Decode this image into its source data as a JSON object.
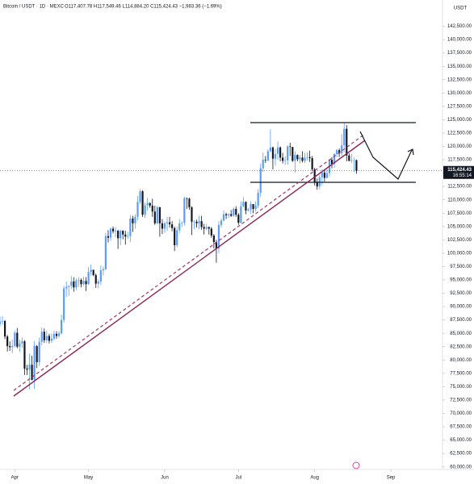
{
  "chart_data": {
    "type": "candlestick",
    "title": "Bitcoin / USDT · 1D · MEXC",
    "subtitle": "O117,407.78 H117,549.46 L114,884.20 C115,424.43 −1,983.36 (−1.69%)",
    "y_axis_label": "USDT",
    "annotations": [
      "115,424.43",
      "16:55:14"
    ],
    "up_color": "#5b9cf6",
    "down_color": "#131722",
    "xlim": [
      0,
      180
    ],
    "xticks": [
      {
        "value": 6,
        "label": "Apr"
      },
      {
        "value": 36,
        "label": "May"
      },
      {
        "value": 67,
        "label": "Jun"
      },
      {
        "value": 97,
        "label": "Jul"
      },
      {
        "value": 128,
        "label": "Aug"
      },
      {
        "value": 159,
        "label": "Sep"
      }
    ],
    "ylim": [
      59500,
      145000
    ],
    "yticks": [
      {
        "value": 60000,
        "label": "60,000.00"
      },
      {
        "value": 62500,
        "label": "62,500.00"
      },
      {
        "value": 65000,
        "label": "65,000.00"
      },
      {
        "value": 67500,
        "label": "67,500.00"
      },
      {
        "value": 70000,
        "label": "70,000.00"
      },
      {
        "value": 72500,
        "label": "72,500.00"
      },
      {
        "value": 75000,
        "label": "75,000.00"
      },
      {
        "value": 77500,
        "label": "77,500.00"
      },
      {
        "value": 80000,
        "label": "80,000.00"
      },
      {
        "value": 82500,
        "label": "82,500.00"
      },
      {
        "value": 85000,
        "label": "85,000.00"
      },
      {
        "value": 87500,
        "label": "87,500.00"
      },
      {
        "value": 90000,
        "label": "90,000.00"
      },
      {
        "value": 92500,
        "label": "92,500.00"
      },
      {
        "value": 95000,
        "label": "95,000.00"
      },
      {
        "value": 97500,
        "label": "97,500.00"
      },
      {
        "value": 100000,
        "label": "100,000.00"
      },
      {
        "value": 102500,
        "label": "102,500.00"
      },
      {
        "value": 105000,
        "label": "105,000.00"
      },
      {
        "value": 107500,
        "label": "107,500.00"
      },
      {
        "value": 110000,
        "label": "110,000.00"
      },
      {
        "value": 112500,
        "label": "112,500.00"
      },
      {
        "value": 115000,
        "label": "115,000.00"
      },
      {
        "value": 117500,
        "label": "117,500.00"
      },
      {
        "value": 120000,
        "label": "120,000.00"
      },
      {
        "value": 122500,
        "label": "122,500.00"
      },
      {
        "value": 125000,
        "label": "125,000.00"
      },
      {
        "value": 127500,
        "label": "127,500.00"
      },
      {
        "value": 130000,
        "label": "130,000.00"
      },
      {
        "value": 132500,
        "label": "132,500.00"
      },
      {
        "value": 135000,
        "label": "135,000.00"
      },
      {
        "value": 137500,
        "label": "137,500.00"
      },
      {
        "value": 140000,
        "label": "140,000.00"
      },
      {
        "value": 142500,
        "label": "142,500.00"
      }
    ],
    "open": [
      86800,
      87200,
      87300,
      84400,
      82600,
      82400,
      82600,
      85100,
      82500,
      83100,
      83500,
      78400,
      78200,
      79100,
      76300,
      82600,
      79600,
      83400,
      85300,
      83700,
      84500,
      83600,
      84000,
      84900,
      84500,
      85000,
      87500,
      93400,
      93700,
      93900,
      94700,
      93600,
      94900,
      95000,
      94200,
      94800,
      94200,
      96500,
      96900,
      95900,
      94300,
      94700,
      96800,
      97000,
      103200,
      102900,
      104600,
      104100,
      104200,
      102800,
      104200,
      103500,
      103100,
      103200,
      106500,
      105600,
      106800,
      109600,
      111600,
      107200,
      109000,
      109400,
      108900,
      107800,
      105600,
      108600,
      105600,
      104600,
      105600,
      105800,
      105400,
      104700,
      101500,
      104300,
      105600,
      105700,
      110300,
      110200,
      108600,
      105900,
      105900,
      105600,
      106000,
      104900,
      104600,
      104900,
      104600,
      103300,
      102100,
      100900,
      105300,
      106100,
      107300,
      107100,
      107300,
      107000,
      108300,
      107200,
      105700,
      108800,
      109600,
      108000,
      108200,
      109200,
      108300,
      108900,
      111300,
      115900,
      117500,
      117400,
      119100,
      119800,
      117700,
      118600,
      119800,
      117900,
      117300,
      117400,
      120000,
      119900,
      117300,
      118400,
      117600,
      117900,
      117300,
      117900,
      118000,
      117800,
      115700,
      113300,
      112500,
      114200,
      115100,
      114100,
      115000,
      117500,
      116700,
      118600,
      119300,
      118700,
      120200,
      123300,
      118300,
      117300,
      117400,
      117407.78
    ],
    "high": [
      88100,
      88200,
      87500,
      84700,
      83500,
      83800,
      85500,
      86000,
      83800,
      84200,
      83700,
      79100,
      81200,
      80800,
      83500,
      82800,
      84200,
      86100,
      85900,
      85500,
      84900,
      85000,
      85500,
      85400,
      85400,
      88500,
      93900,
      94700,
      94000,
      95700,
      95500,
      95300,
      95500,
      95300,
      95600,
      95500,
      97400,
      97900,
      96900,
      96200,
      95100,
      97700,
      97500,
      103800,
      104300,
      104800,
      105000,
      104900,
      104400,
      104400,
      104300,
      104200,
      104000,
      107100,
      107000,
      107300,
      110700,
      112000,
      111800,
      109500,
      110400,
      109500,
      110200,
      108900,
      108900,
      108700,
      106400,
      105900,
      106800,
      106800,
      106000,
      105000,
      105000,
      106400,
      106000,
      110600,
      110400,
      110400,
      108800,
      106200,
      106300,
      107000,
      107000,
      105500,
      105500,
      105000,
      104900,
      103600,
      102500,
      106000,
      106500,
      108000,
      107600,
      107500,
      108100,
      108600,
      108800,
      107500,
      109700,
      110500,
      109700,
      108500,
      109700,
      109200,
      109700,
      112000,
      116800,
      118900,
      118200,
      119500,
      123200,
      120000,
      119500,
      120900,
      120000,
      118800,
      118200,
      120200,
      120700,
      119800,
      119100,
      118500,
      118400,
      119100,
      118800,
      118900,
      119200,
      118200,
      116000,
      114000,
      114700,
      115700,
      115700,
      115800,
      117600,
      118000,
      118700,
      119500,
      119600,
      122300,
      124500,
      124000,
      118700,
      118600,
      117900,
      117549.46
    ],
    "low": [
      86300,
      86600,
      83900,
      81600,
      81700,
      81300,
      82400,
      82200,
      81500,
      82300,
      77200,
      77200,
      74500,
      76200,
      74600,
      78500,
      78900,
      82700,
      83200,
      83200,
      83100,
      83200,
      83700,
      84000,
      84200,
      84800,
      87000,
      91800,
      92000,
      93300,
      92800,
      93100,
      93700,
      93600,
      93900,
      92900,
      94100,
      95800,
      95700,
      93500,
      93400,
      94100,
      95800,
      96900,
      102000,
      102300,
      103700,
      103000,
      100800,
      101500,
      102600,
      101600,
      102700,
      102100,
      104000,
      104600,
      106200,
      109200,
      106800,
      106600,
      108000,
      108500,
      106800,
      105300,
      105400,
      103100,
      103600,
      103800,
      104200,
      104800,
      104100,
      100400,
      101100,
      103800,
      104900,
      105200,
      108300,
      108100,
      103400,
      104500,
      104800,
      104500,
      104400,
      103500,
      104300,
      103500,
      102900,
      100900,
      98200,
      100000,
      104800,
      106000,
      106400,
      106600,
      106800,
      106800,
      106800,
      105300,
      105600,
      108600,
      107300,
      107800,
      107400,
      107500,
      107800,
      108400,
      110600,
      115200,
      116900,
      117200,
      118900,
      115700,
      116400,
      117500,
      117200,
      116800,
      116500,
      116500,
      118200,
      117100,
      115100,
      117200,
      116800,
      117000,
      116900,
      117400,
      117100,
      115400,
      112700,
      111900,
      112000,
      112700,
      113400,
      114000,
      114300,
      115900,
      116000,
      118000,
      118000,
      118200,
      118900,
      117200,
      117200,
      116900,
      115200,
      114884.2
    ],
    "close": [
      87200,
      87300,
      84400,
      82600,
      82400,
      82600,
      85100,
      82500,
      83100,
      83500,
      78400,
      78200,
      79100,
      76300,
      82600,
      79600,
      83400,
      85300,
      83700,
      84500,
      83600,
      84000,
      84900,
      84500,
      85000,
      87500,
      93400,
      93700,
      93900,
      94700,
      93600,
      94900,
      95000,
      94200,
      94800,
      94200,
      96500,
      96900,
      95900,
      94300,
      94700,
      96800,
      97000,
      103200,
      102900,
      104600,
      104100,
      104200,
      102800,
      104200,
      103500,
      103100,
      103200,
      106500,
      105600,
      106800,
      109600,
      111600,
      107200,
      109000,
      109400,
      108900,
      107800,
      105600,
      108600,
      105600,
      104600,
      105600,
      105800,
      105400,
      104700,
      101500,
      104300,
      105600,
      105700,
      110300,
      110200,
      108600,
      105900,
      105900,
      105600,
      106000,
      104900,
      104600,
      104900,
      104600,
      103300,
      102100,
      100900,
      105300,
      106100,
      107300,
      107100,
      107300,
      107000,
      108300,
      107200,
      105700,
      108800,
      109600,
      108000,
      108200,
      109200,
      108300,
      108900,
      111300,
      115900,
      117500,
      117400,
      119100,
      119800,
      117700,
      118600,
      119800,
      117900,
      117300,
      117400,
      120000,
      119900,
      117300,
      118400,
      117600,
      117900,
      117300,
      117900,
      118000,
      117800,
      115700,
      113300,
      112500,
      114200,
      115100,
      114100,
      115000,
      117500,
      116700,
      118600,
      119300,
      118700,
      120200,
      123300,
      118300,
      117300,
      117400,
      117407.78,
      115424.43
    ]
  }
}
